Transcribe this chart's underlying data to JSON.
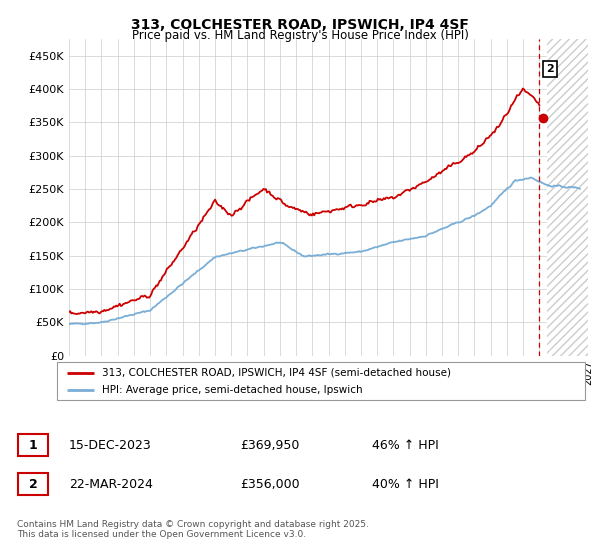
{
  "title1": "313, COLCHESTER ROAD, IPSWICH, IP4 4SF",
  "title2": "Price paid vs. HM Land Registry's House Price Index (HPI)",
  "legend1": "313, COLCHESTER ROAD, IPSWICH, IP4 4SF (semi-detached house)",
  "legend2": "HPI: Average price, semi-detached house, Ipswich",
  "footer": "Contains HM Land Registry data © Crown copyright and database right 2025.\nThis data is licensed under the Open Government Licence v3.0.",
  "table": [
    {
      "num": "1",
      "date": "15-DEC-2023",
      "price": "£369,950",
      "change": "46% ↑ HPI"
    },
    {
      "num": "2",
      "date": "22-MAR-2024",
      "price": "£356,000",
      "change": "40% ↑ HPI"
    }
  ],
  "red_color": "#cc0000",
  "blue_color": "#7aaed6",
  "ylim": [
    0,
    475000
  ],
  "yticks": [
    0,
    50000,
    100000,
    150000,
    200000,
    250000,
    300000,
    350000,
    400000,
    450000
  ],
  "ytick_labels": [
    "£0",
    "£50K",
    "£100K",
    "£150K",
    "£200K",
    "£250K",
    "£300K",
    "£350K",
    "£400K",
    "£450K"
  ],
  "marker2_x": 2024.22,
  "marker2_y": 356000,
  "marker1_x": 2023.96,
  "marker1_y": 369950,
  "future_start": 2024.5,
  "xmin": 1995,
  "xmax": 2027
}
